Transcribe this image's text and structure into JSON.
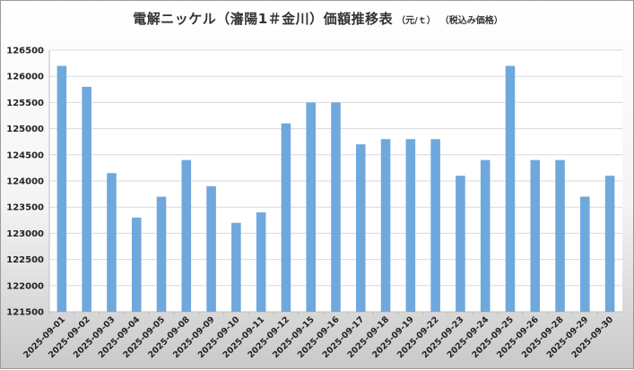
{
  "chart_data": {
    "type": "bar",
    "title": "電解ニッケル（瀋陽1＃金川）価額推移表",
    "unit": "（元/ｔ）",
    "tax_note": "（税込み価格）",
    "xlabel": "",
    "ylabel": "",
    "ylim": [
      121500,
      126500
    ],
    "ytick_step": 500,
    "grid": true,
    "bar_color": "#6fa8dc",
    "categories": [
      "2025-09-01",
      "2025-09-02",
      "2025-09-03",
      "2025-09-04",
      "2025-09-05",
      "2025-09-08",
      "2025-09-09",
      "2025-09-10",
      "2025-09-11",
      "2025-09-12",
      "2025-09-15",
      "2025-09-16",
      "2025-09-17",
      "2025-09-18",
      "2025-09-19",
      "2025-09-22",
      "2025-09-23",
      "2025-09-24",
      "2025-09-25",
      "2025-09-26",
      "2025-09-28",
      "2025-09-29",
      "2025-09-30"
    ],
    "values": [
      126200,
      125800,
      124150,
      123300,
      123700,
      124400,
      123900,
      123200,
      123400,
      125100,
      125500,
      125500,
      124700,
      124800,
      124800,
      124800,
      124100,
      124400,
      126200,
      124400,
      124400,
      123700,
      124100
    ]
  }
}
